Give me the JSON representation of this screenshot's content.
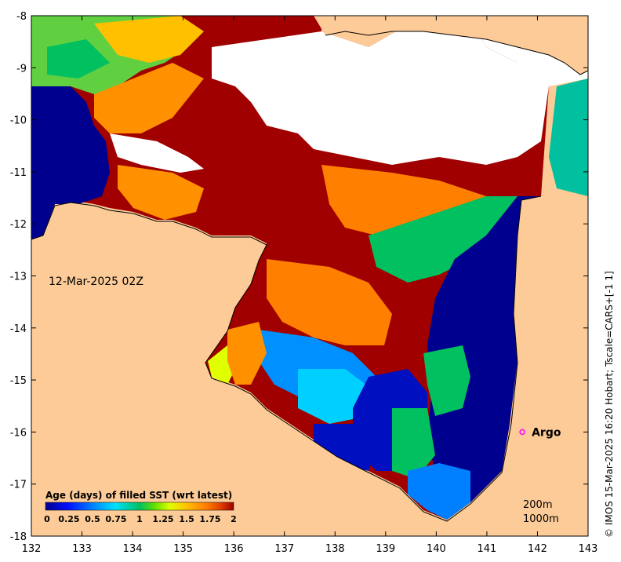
{
  "map": {
    "date_label": "12-Mar-2025 02Z",
    "credit": "© IMOS 15-Mar-2025 16:20 Hobart; Tscale=CARS+[-1 1]",
    "x_ticks": [
      "132",
      "133",
      "134",
      "135",
      "136",
      "137",
      "138",
      "139",
      "140",
      "141",
      "142",
      "143"
    ],
    "y_ticks": [
      "-8",
      "-9",
      "-10",
      "-11",
      "-12",
      "-13",
      "-14",
      "-15",
      "-16",
      "-17",
      "-18"
    ],
    "lon_range": [
      132,
      143
    ],
    "lat_range": [
      -18,
      -8
    ],
    "argo": {
      "label": "Argo",
      "lon": 141.7,
      "lat": -16.0
    },
    "contours": [
      "200m",
      "1000m"
    ],
    "colorbar": {
      "title": "Age (days) of filled SST (wrt latest)",
      "ticks": [
        "0",
        "0.25",
        "0.5",
        "0.75",
        "1",
        "1.25",
        "1.5",
        "1.75",
        "2"
      ],
      "colors": [
        "#00008f",
        "#0010ff",
        "#0080ff",
        "#00e0ff",
        "#00c060",
        "#60e000",
        "#e0ff00",
        "#ffc000",
        "#ff8000",
        "#e04000",
        "#a00000"
      ]
    },
    "colors": {
      "land": "#fccb97",
      "cloud": "#ffffff",
      "argo_marker": "#ff00ff"
    }
  }
}
